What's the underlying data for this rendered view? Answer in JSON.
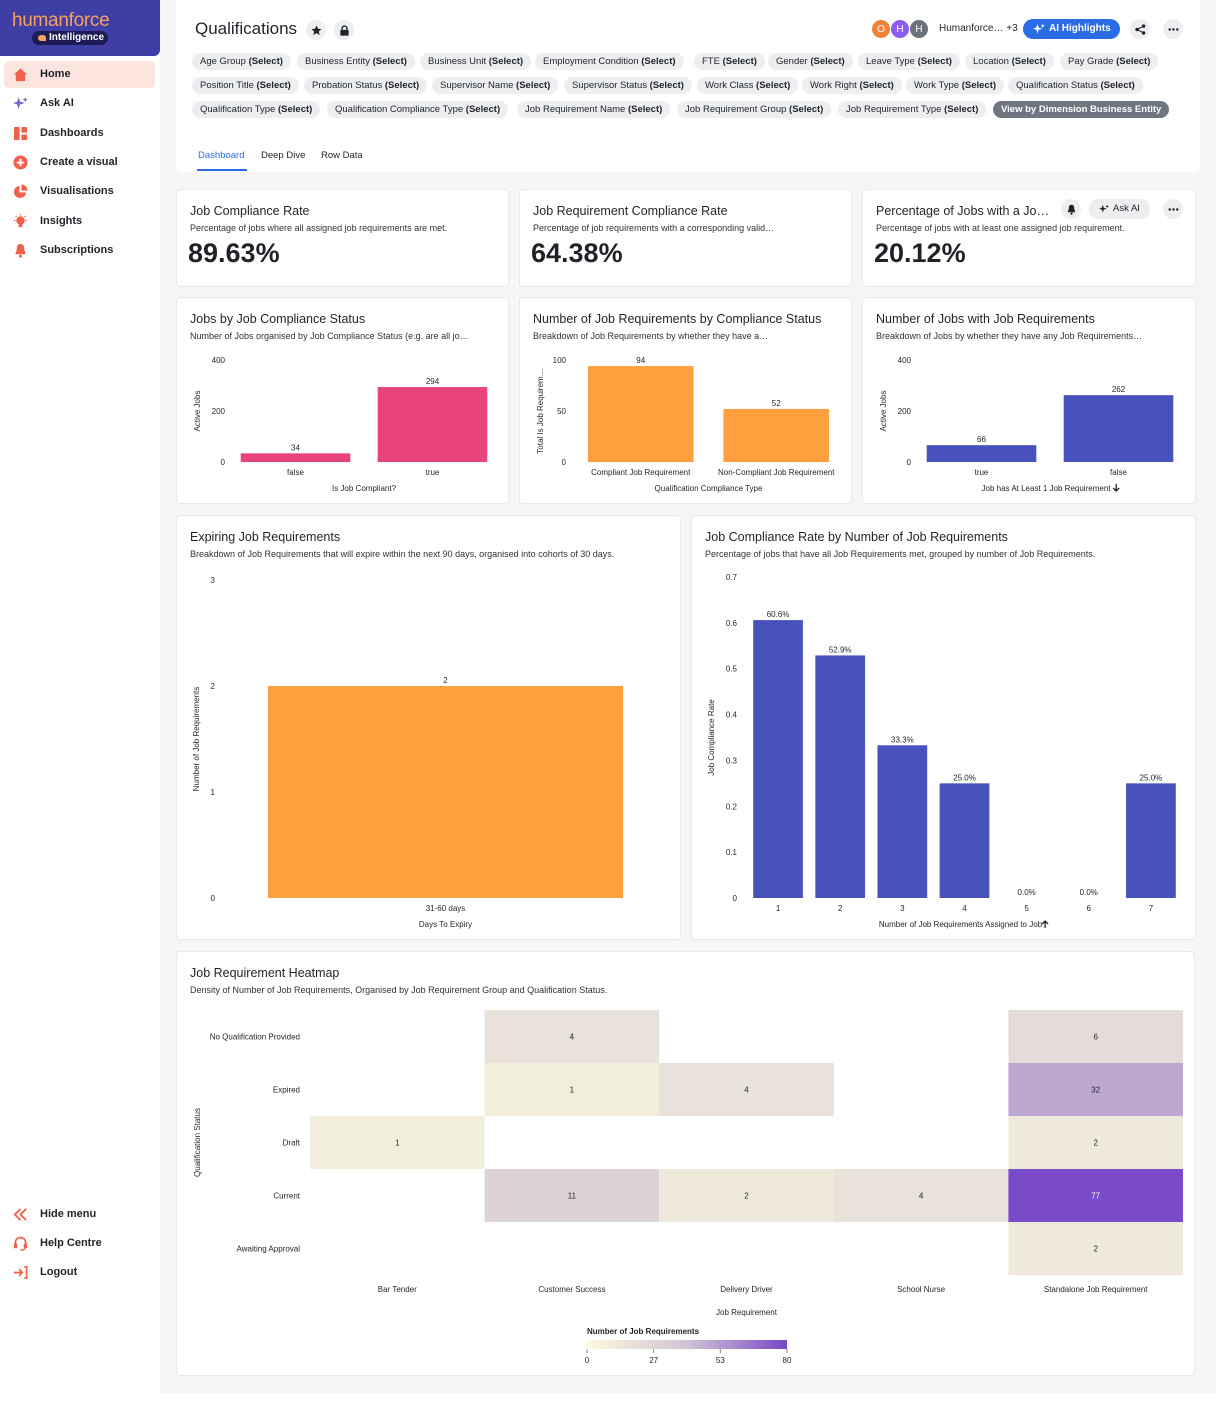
{
  "brand": {
    "name": "humanforce",
    "product": "Intelligence"
  },
  "nav": {
    "items": [
      {
        "label": "Home"
      },
      {
        "label": "Ask AI"
      },
      {
        "label": "Dashboards"
      },
      {
        "label": "Create a visual"
      },
      {
        "label": "Visualisations"
      },
      {
        "label": "Insights"
      },
      {
        "label": "Subscriptions"
      }
    ],
    "bottom": [
      {
        "label": "Hide menu"
      },
      {
        "label": "Help Centre"
      },
      {
        "label": "Logout"
      }
    ]
  },
  "header": {
    "title": "Qualifications",
    "avatars": [
      "O",
      "H",
      "H"
    ],
    "owners": "Humanforce… +3",
    "ai_button": "AI Highlights"
  },
  "filters": [
    {
      "name": "Age Group",
      "value": "(Select)"
    },
    {
      "name": "Business Entity",
      "value": "(Select)"
    },
    {
      "name": "Business Unit",
      "value": "(Select)"
    },
    {
      "name": "Employment Condition",
      "value": "(Select)"
    },
    {
      "name": "FTE",
      "value": "(Select)"
    },
    {
      "name": "Gender",
      "value": "(Select)"
    },
    {
      "name": "Leave Type",
      "value": "(Select)"
    },
    {
      "name": "Location",
      "value": "(Select)"
    },
    {
      "name": "Pay Grade",
      "value": "(Select)"
    },
    {
      "name": "Position Title",
      "value": "(Select)"
    },
    {
      "name": "Probation Status",
      "value": "(Select)"
    },
    {
      "name": "Supervisor Name",
      "value": "(Select)"
    },
    {
      "name": "Supervisor Status",
      "value": "(Select)"
    },
    {
      "name": "Work Class",
      "value": "(Select)"
    },
    {
      "name": "Work Right",
      "value": "(Select)"
    },
    {
      "name": "Work Type",
      "value": "(Select)"
    },
    {
      "name": "Qualification Status",
      "value": "(Select)"
    },
    {
      "name": "Qualification Type",
      "value": "(Select)"
    },
    {
      "name": "Qualification Compliance Type",
      "value": "(Select)"
    },
    {
      "name": "Job Requirement Name",
      "value": "(Select)"
    },
    {
      "name": "Job Requirement Group",
      "value": "(Select)"
    },
    {
      "name": "Job Requirement Type",
      "value": "(Select)"
    }
  ],
  "dimension_button": "View by Dimension Business Entity",
  "tabs": [
    "Dashboard",
    "Deep Dive",
    "Row Data"
  ],
  "kpis": [
    {
      "title": "Job Compliance Rate",
      "subtitle": "Percentage of jobs where all assigned job requirements are met.",
      "value": "89.63%"
    },
    {
      "title": "Job Requirement Compliance Rate",
      "subtitle": "Percentage of job requirements with a corresponding valid…",
      "value": "64.38%"
    },
    {
      "title": "Percentage of Jobs with a Jo…",
      "subtitle": "Percentage of jobs with at least one assigned job requirement.",
      "value": "20.12%",
      "ask_ai": "Ask AI"
    }
  ],
  "colors": {
    "pink": "#e8447a",
    "orange": "#fea03d",
    "indigo": "#4752bc",
    "accent": "#2a6be6"
  },
  "chart_data": [
    {
      "type": "bar",
      "title": "Jobs by Job Compliance Status",
      "subtitle": "Number of Jobs organised by Job Compliance Status (e.g. are all jo…",
      "categories": [
        "false",
        "true"
      ],
      "values": [
        34,
        294
      ],
      "labels": [
        "34",
        "294"
      ],
      "xlabel": "Is Job Compliant?",
      "ylabel": "Active Jobs",
      "ylim": [
        0,
        400
      ],
      "yticks": [
        "0",
        "200",
        "400"
      ],
      "color": "#e8447a"
    },
    {
      "type": "bar",
      "title": "Number of Job Requirements by Compliance Status",
      "subtitle": "Breakdown of Job Requirements by whether they have a…",
      "categories": [
        "Compliant Job Requirement",
        "Non-Compliant Job Requirement"
      ],
      "values": [
        94,
        52
      ],
      "labels": [
        "94",
        "52"
      ],
      "xlabel": "Qualification Compliance Type",
      "ylabel": "Total Is Job Requirem…",
      "ylim": [
        0,
        100
      ],
      "yticks": [
        "0",
        "50",
        "100"
      ],
      "color": "#fea03d"
    },
    {
      "type": "bar",
      "title": "Number of Jobs with Job Requirements",
      "subtitle": "Breakdown of Jobs by whether they have any Job Requirements…",
      "categories": [
        "true",
        "false"
      ],
      "values": [
        66,
        262
      ],
      "labels": [
        "66",
        "262"
      ],
      "xlabel": "Job has At Least 1 Job Requirement",
      "ylabel": "Active Jobs",
      "ylim": [
        0,
        400
      ],
      "yticks": [
        "0",
        "200",
        "400"
      ],
      "color": "#4752bc",
      "sort": "desc"
    },
    {
      "type": "bar",
      "title": "Expiring Job Requirements",
      "subtitle": "Breakdown of Job Requirements that will expire within the next 90 days, organised into cohorts of 30 days.",
      "categories": [
        "31-60 days"
      ],
      "values": [
        2
      ],
      "labels": [
        "2"
      ],
      "xlabel": "Days To Expiry",
      "ylabel": "Number of Job Requirements",
      "ylim": [
        0,
        3
      ],
      "yticks": [
        "0",
        "1",
        "2",
        "3"
      ],
      "color": "#fea03d"
    },
    {
      "type": "bar",
      "title": "Job Compliance Rate by Number of Job Requirements",
      "subtitle": "Percentage of jobs that have all Job Requirements met, grouped by number of Job Requirements.",
      "categories": [
        "1",
        "2",
        "3",
        "4",
        "5",
        "6",
        "7"
      ],
      "values": [
        0.606,
        0.529,
        0.333,
        0.25,
        0,
        0,
        0.25
      ],
      "labels": [
        "60.6%",
        "52.9%",
        "33.3%",
        "25.0%",
        "0.0%",
        "0.0%",
        "25.0%"
      ],
      "xlabel": "Number of Job Requirements Assigned to Job",
      "ylabel": "Job Compliance Rate",
      "ylim": [
        0,
        0.7
      ],
      "yticks": [
        "0",
        "0.1",
        "0.2",
        "0.3",
        "0.4",
        "0.5",
        "0.6",
        "0.7"
      ],
      "color": "#4752bc",
      "sort": "asc"
    },
    {
      "type": "heatmap",
      "title": "Job Requirement Heatmap",
      "subtitle": "Density of Number of Job Requirements, Organised by Job Requirement Group and Qualification Status.",
      "x": [
        "Bar Tender",
        "Customer Success",
        "Delivery Driver",
        "School Nurse",
        "Standalone Job Requirement"
      ],
      "y": [
        "No Qualification Provided",
        "Expired",
        "Draft",
        "Current",
        "Awaiting Approval"
      ],
      "values": [
        [
          null,
          4,
          null,
          null,
          6
        ],
        [
          null,
          1,
          4,
          null,
          32
        ],
        [
          1,
          null,
          null,
          null,
          2
        ],
        [
          null,
          11,
          2,
          4,
          77
        ],
        [
          null,
          null,
          null,
          null,
          2
        ]
      ],
      "xlabel": "Job Requirement",
      "ylabel": "Qualification Status",
      "legend_title": "Number of Job Requirements",
      "legend_ticks": [
        "0",
        "27",
        "53",
        "80"
      ],
      "vmax": 80
    }
  ]
}
